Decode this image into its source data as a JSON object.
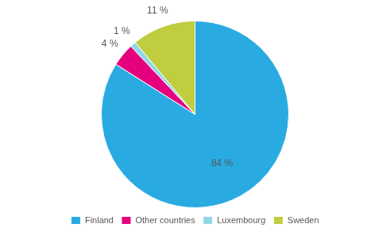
{
  "chart_data": {
    "type": "pie",
    "categories": [
      "Finland",
      "Other countries",
      "Luxembourg",
      "Sweden"
    ],
    "values": [
      84,
      4,
      1,
      11
    ],
    "value_labels": [
      "84 %",
      "4 %",
      "1 %",
      "11 %"
    ],
    "colors": [
      "#29ABE2",
      "#E5007D",
      "#92D7E8",
      "#BFCD3E"
    ],
    "data_labels": true,
    "legend": "bottom"
  }
}
